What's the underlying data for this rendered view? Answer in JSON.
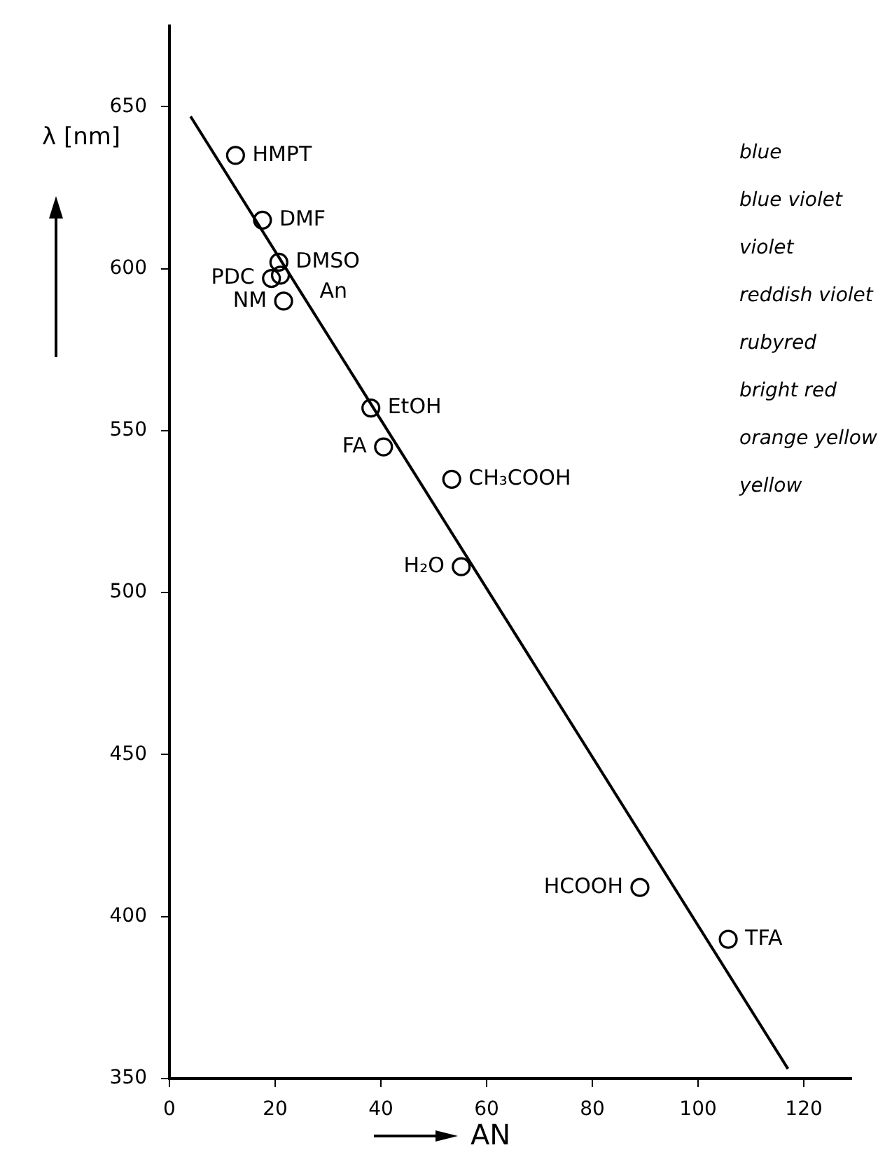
{
  "chart_data": {
    "type": "scatter",
    "xlabel": "AN",
    "ylabel": "λ [nm]",
    "xlim": [
      0,
      129
    ],
    "xticks": [
      0,
      20,
      40,
      60,
      80,
      100,
      120
    ],
    "ylim": [
      350,
      675
    ],
    "yticks": [
      350,
      400,
      450,
      500,
      550,
      600,
      650
    ],
    "grid": false,
    "legend": false,
    "marker": "circle",
    "series": [
      {
        "color": "#000000",
        "x": [
          12.5,
          17.6,
          20.7,
          19.3,
          21,
          21.6,
          38.1,
          40.5,
          53.4,
          55.2,
          89,
          105.7
        ],
        "values": [
          635,
          615,
          602,
          597,
          598,
          590,
          557,
          545,
          535,
          508,
          409,
          393
        ]
      },
      {
        "type": "line",
        "color": "#000000",
        "marker": "none",
        "x": [
          4,
          117
        ],
        "values": [
          647,
          353
        ]
      }
    ],
    "annotations": [
      {
        "text": "HMPT",
        "x": 12.5,
        "y": 635
      },
      {
        "text": "DMF",
        "x": 17.6,
        "y": 615
      },
      {
        "text": "DMSO",
        "x": 20.7,
        "y": 602
      },
      {
        "text": "PDC",
        "x": 19.3,
        "y": 597
      },
      {
        "text": "An",
        "x": 21,
        "y": 598
      },
      {
        "text": "NM",
        "x": 21.6,
        "y": 590
      },
      {
        "text": "EtOH",
        "x": 38.1,
        "y": 557
      },
      {
        "text": "FA",
        "x": 40.5,
        "y": 545
      },
      {
        "text": "CH₃COOH",
        "x": 53.4,
        "y": 535
      },
      {
        "text": "H₂O",
        "x": 55.2,
        "y": 508
      },
      {
        "text": "HCOOH",
        "x": 89,
        "y": 409
      },
      {
        "text": "TFA",
        "x": 105.7,
        "y": 393
      },
      "blue",
      "blue violet",
      "violet",
      "reddish violet",
      "rubyred",
      "bright red",
      "orange yellow",
      "yellow"
    ]
  }
}
